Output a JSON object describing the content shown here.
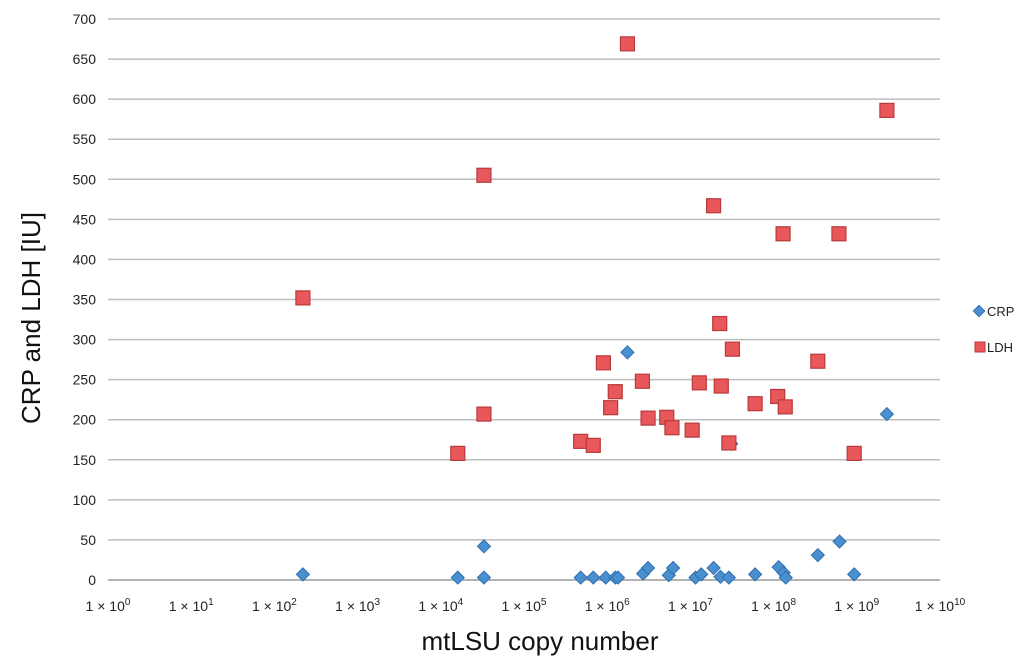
{
  "chart_data": {
    "type": "scatter",
    "title": "",
    "xlabel": "mtLSU copy number",
    "ylabel": "CRP and LDH [IU]",
    "x_scale": "log10",
    "xlim": [
      1,
      10000000000
    ],
    "ylim": [
      0,
      700
    ],
    "y_ticks": [
      0,
      50,
      100,
      150,
      200,
      250,
      300,
      350,
      400,
      450,
      500,
      550,
      600,
      650,
      700
    ],
    "x_ticks": [
      {
        "value": 1,
        "base": "1 × 10",
        "exp": "0"
      },
      {
        "value": 10,
        "base": "1 × 10",
        "exp": "1"
      },
      {
        "value": 100,
        "base": "1 × 10",
        "exp": "2"
      },
      {
        "value": 1000,
        "base": "1 × 10",
        "exp": "3"
      },
      {
        "value": 10000,
        "base": "1 × 10",
        "exp": "4"
      },
      {
        "value": 100000,
        "base": "1 × 10",
        "exp": "5"
      },
      {
        "value": 1000000,
        "base": "1 × 10",
        "exp": "6"
      },
      {
        "value": 10000000,
        "base": "1 × 10",
        "exp": "7"
      },
      {
        "value": 100000000,
        "base": "1 × 10",
        "exp": "8"
      },
      {
        "value": 1000000000,
        "base": "1 × 10",
        "exp": "9"
      },
      {
        "value": 10000000000,
        "base": "1 × 10",
        "exp": "10"
      }
    ],
    "grid": "horizontal",
    "legend_position": "right",
    "series": [
      {
        "name": "CRP",
        "marker": "diamond",
        "color": "#4a90d0",
        "points": [
          {
            "x": 220,
            "y": 7
          },
          {
            "x": 16000,
            "y": 3
          },
          {
            "x": 33000,
            "y": 42
          },
          {
            "x": 33000,
            "y": 3
          },
          {
            "x": 480000,
            "y": 3
          },
          {
            "x": 680000,
            "y": 3
          },
          {
            "x": 960000,
            "y": 3
          },
          {
            "x": 1250000,
            "y": 3
          },
          {
            "x": 1350000,
            "y": 3
          },
          {
            "x": 1750000,
            "y": 284
          },
          {
            "x": 2700000,
            "y": 8
          },
          {
            "x": 3100000,
            "y": 15
          },
          {
            "x": 5500000,
            "y": 6
          },
          {
            "x": 6200000,
            "y": 15
          },
          {
            "x": 11500000,
            "y": 3
          },
          {
            "x": 13500000,
            "y": 7
          },
          {
            "x": 19000000,
            "y": 15
          },
          {
            "x": 23000000,
            "y": 4
          },
          {
            "x": 29000000,
            "y": 3
          },
          {
            "x": 31000000,
            "y": 170
          },
          {
            "x": 60000000,
            "y": 7
          },
          {
            "x": 115000000,
            "y": 16
          },
          {
            "x": 132000000,
            "y": 9
          },
          {
            "x": 140000000,
            "y": 3
          },
          {
            "x": 340000000,
            "y": 31
          },
          {
            "x": 620000000,
            "y": 48
          },
          {
            "x": 930000000,
            "y": 7
          },
          {
            "x": 2300000000,
            "y": 207
          }
        ]
      },
      {
        "name": "LDH",
        "marker": "square",
        "color": "#e8575a",
        "points": [
          {
            "x": 220,
            "y": 352
          },
          {
            "x": 16000,
            "y": 158
          },
          {
            "x": 33000,
            "y": 505
          },
          {
            "x": 33000,
            "y": 207
          },
          {
            "x": 480000,
            "y": 173
          },
          {
            "x": 680000,
            "y": 168
          },
          {
            "x": 900000,
            "y": 271
          },
          {
            "x": 1100000,
            "y": 215
          },
          {
            "x": 1250000,
            "y": 235
          },
          {
            "x": 1750000,
            "y": 669
          },
          {
            "x": 2650000,
            "y": 248
          },
          {
            "x": 3100000,
            "y": 202
          },
          {
            "x": 5200000,
            "y": 203
          },
          {
            "x": 6000000,
            "y": 190
          },
          {
            "x": 10500000,
            "y": 187
          },
          {
            "x": 12800000,
            "y": 246
          },
          {
            "x": 19000000,
            "y": 467
          },
          {
            "x": 22500000,
            "y": 320
          },
          {
            "x": 23500000,
            "y": 242
          },
          {
            "x": 29000000,
            "y": 171
          },
          {
            "x": 32000000,
            "y": 288
          },
          {
            "x": 60000000,
            "y": 220
          },
          {
            "x": 112000000,
            "y": 229
          },
          {
            "x": 130000000,
            "y": 432
          },
          {
            "x": 138000000,
            "y": 216
          },
          {
            "x": 340000000,
            "y": 273
          },
          {
            "x": 610000000,
            "y": 432
          },
          {
            "x": 930000000,
            "y": 158
          },
          {
            "x": 2300000000,
            "y": 586
          }
        ]
      }
    ]
  }
}
